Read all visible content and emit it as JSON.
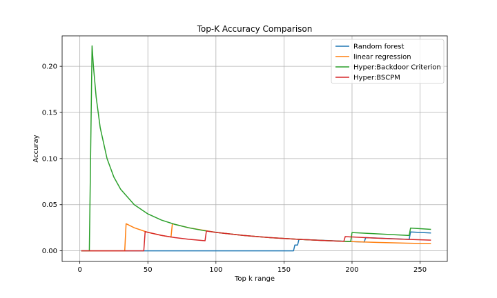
{
  "chart_data": {
    "type": "line",
    "title": "Top-K Accuracy Comparison",
    "xlabel": "Top k range",
    "ylabel": "Accuray",
    "xlim": [
      -13,
      270
    ],
    "ylim": [
      -0.0115,
      0.233
    ],
    "xticks": [
      0,
      50,
      100,
      150,
      200,
      250
    ],
    "yticks": [
      0.0,
      0.05,
      0.1,
      0.15,
      0.2
    ],
    "xtick_labels": [
      "0",
      "50",
      "100",
      "150",
      "200",
      "250"
    ],
    "ytick_labels": [
      "0.00",
      "0.05",
      "0.10",
      "0.15",
      "0.20"
    ],
    "grid": true,
    "legend_position": "top-right",
    "series": [
      {
        "name": "Random forest",
        "color": "#1f77b4",
        "points": [
          [
            1,
            0
          ],
          [
            157,
            0
          ],
          [
            158,
            0.0063
          ],
          [
            160,
            0.0063
          ],
          [
            161,
            0.0124
          ],
          [
            209,
            0.0095
          ],
          [
            210,
            0.0143
          ],
          [
            242,
            0.0124
          ],
          [
            243,
            0.0205
          ],
          [
            258,
            0.0193
          ]
        ]
      },
      {
        "name": "linear regression",
        "color": "#ff7f0e",
        "points": [
          [
            1,
            0
          ],
          [
            33,
            0
          ],
          [
            34,
            0.0294
          ],
          [
            40,
            0.025
          ],
          [
            50,
            0.02
          ],
          [
            60,
            0.0167
          ],
          [
            67,
            0.0149
          ],
          [
            68,
            0.0294
          ],
          [
            80,
            0.025
          ],
          [
            100,
            0.02
          ],
          [
            120,
            0.0167
          ],
          [
            140,
            0.0143
          ],
          [
            160,
            0.0125
          ],
          [
            180,
            0.0111
          ],
          [
            200,
            0.01
          ],
          [
            220,
            0.0091
          ],
          [
            240,
            0.0083
          ],
          [
            258,
            0.0078
          ]
        ]
      },
      {
        "name": "Hyper:Backdoor Criterion",
        "color": "#2ca02c",
        "points": [
          [
            1,
            0
          ],
          [
            7,
            0
          ],
          [
            9,
            0.2222
          ],
          [
            10,
            0.2
          ],
          [
            12,
            0.1667
          ],
          [
            15,
            0.1333
          ],
          [
            20,
            0.1
          ],
          [
            25,
            0.08
          ],
          [
            30,
            0.0667
          ],
          [
            40,
            0.05
          ],
          [
            50,
            0.04
          ],
          [
            60,
            0.0333
          ],
          [
            70,
            0.0286
          ],
          [
            80,
            0.025
          ],
          [
            90,
            0.0222
          ],
          [
            100,
            0.02
          ],
          [
            120,
            0.0167
          ],
          [
            140,
            0.0143
          ],
          [
            160,
            0.0125
          ],
          [
            180,
            0.0111
          ],
          [
            199,
            0.01
          ],
          [
            200,
            0.0198
          ],
          [
            242,
            0.0166
          ],
          [
            243,
            0.0247
          ],
          [
            258,
            0.0233
          ]
        ]
      },
      {
        "name": "Hyper:BSCPM",
        "color": "#d62728",
        "points": [
          [
            1,
            0
          ],
          [
            47,
            0
          ],
          [
            48,
            0.0208
          ],
          [
            60,
            0.0167
          ],
          [
            70,
            0.0143
          ],
          [
            80,
            0.0125
          ],
          [
            92,
            0.0109
          ],
          [
            93,
            0.0215
          ],
          [
            100,
            0.02
          ],
          [
            120,
            0.0167
          ],
          [
            140,
            0.0143
          ],
          [
            160,
            0.0125
          ],
          [
            180,
            0.0111
          ],
          [
            194,
            0.0103
          ],
          [
            195,
            0.0154
          ],
          [
            210,
            0.0143
          ],
          [
            230,
            0.013
          ],
          [
            258,
            0.0116
          ]
        ]
      }
    ]
  }
}
